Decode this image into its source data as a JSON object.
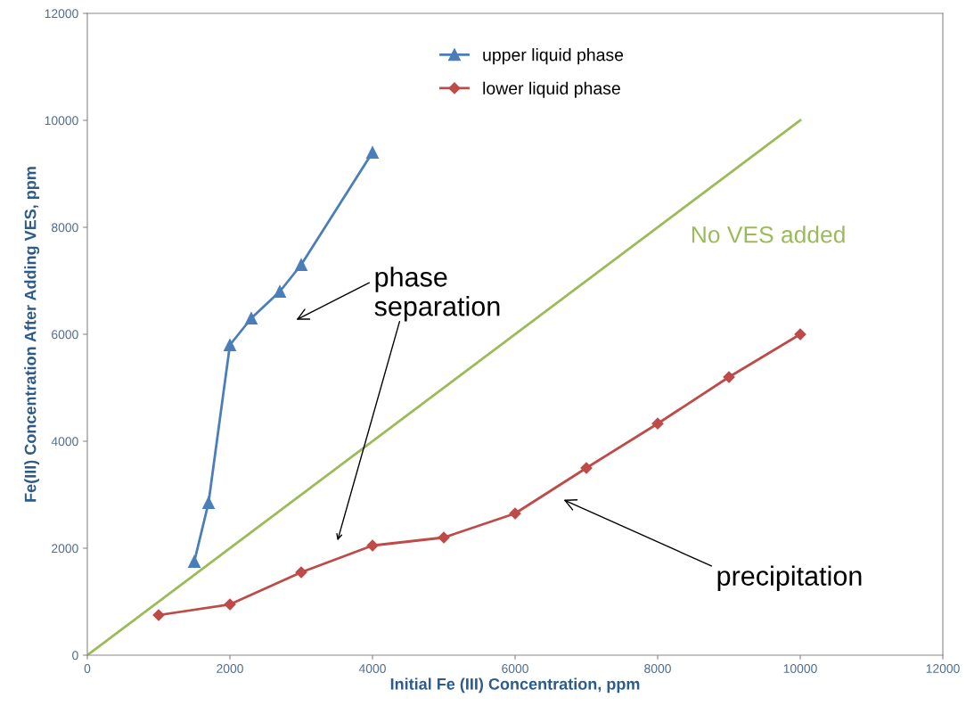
{
  "chart_data": {
    "type": "line",
    "xlabel": "Initial Fe (III) Concentration, ppm",
    "ylabel": "Fe(III) Concentration After Adding VES, ppm",
    "xlim": [
      0,
      12000
    ],
    "ylim": [
      0,
      12000
    ],
    "xticks": [
      0,
      2000,
      4000,
      6000,
      8000,
      10000,
      12000
    ],
    "yticks": [
      0,
      2000,
      4000,
      6000,
      8000,
      10000,
      12000
    ],
    "grid": false,
    "legend": "top",
    "series": [
      {
        "name": "upper liquid phase",
        "color": "#4a7ebb",
        "marker": "triangle",
        "x": [
          1500,
          1700,
          2000,
          2300,
          2700,
          3000,
          4000
        ],
        "values": [
          1750,
          2850,
          5800,
          6300,
          6800,
          7300,
          9400
        ]
      },
      {
        "name": "lower liquid phase",
        "color": "#be4b48",
        "marker": "diamond",
        "x": [
          1000,
          2000,
          3000,
          4000,
          5000,
          6000,
          7000,
          8000,
          9000,
          10000
        ],
        "values": [
          750,
          950,
          1550,
          2050,
          2200,
          2650,
          3500,
          4330,
          5200,
          6000
        ]
      },
      {
        "name": "No VES added",
        "color": "#9bbb59",
        "marker": "none",
        "x": [
          0,
          10000
        ],
        "values": [
          0,
          10000
        ]
      }
    ],
    "annotations": [
      "phase\nseparation",
      "precipitation"
    ]
  }
}
